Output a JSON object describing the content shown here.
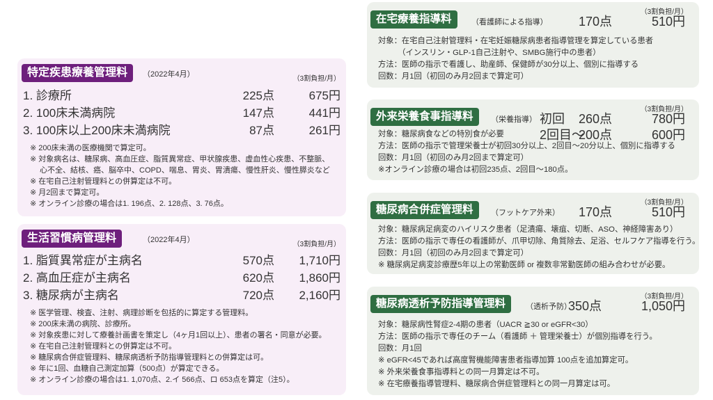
{
  "left_panels": [
    {
      "title": "特定疾患療養管理料",
      "subtitle": "（2022年4月）",
      "burden": "（3割負担/月）",
      "items": [
        {
          "label": "1. 診療所",
          "points": "225点",
          "yen": "675円"
        },
        {
          "label": "2. 100床未満病院",
          "points": "147点",
          "yen": "441円"
        },
        {
          "label": "3. 100床以上200床未満病院",
          "points": "87点",
          "yen": "261円"
        }
      ],
      "notes": [
        "※ 200床未満の医療機関で算定可。",
        "※ 対象病名は、糖尿病、高血圧症、脂質異常症、甲状腺疾患、虚血性心疾患、不整脈、",
        "　 心不全、結核、癌、脳卒中、COPD、喘息、胃炎、胃潰瘍、慢性肝炎、慢性膵炎など",
        "※ 在宅自己注射管理料との併算定は不可。",
        "※ 月2回まで算定可。",
        "※ オンライン診療の場合は1. 196点、2. 128点、3. 76点。"
      ]
    },
    {
      "title": "生活習慣病管理料",
      "subtitle": "（2022年4月）",
      "burden": "（3割負担/月）",
      "items": [
        {
          "label": "1. 脂質異常症が主病名",
          "points": "570点",
          "yen": "1,710円"
        },
        {
          "label": "2. 高血圧症が主病名",
          "points": "620点",
          "yen": "1,860円"
        },
        {
          "label": "3. 糖尿病が主病名",
          "points": "720点",
          "yen": "2,160円"
        }
      ],
      "notes": [
        "※ 医学管理、検査、注射、病理診断を包括的に算定する管理料。",
        "※ 200床未満の病院、診療所。",
        "※ 対象疾患に対して療養計画書を策定し（4ヶ月1回以上）、患者の署名・同意が必要。",
        "※ 在宅自己注射管理料との併算定は不可。",
        "※ 糖尿病合併症管理料、糖尿病透析予防指導管理料との併算定は可。",
        "※ 年に1回、血糖自己測定加算（500点）が算定できる。",
        "※ オンライン診療の場合は1. 1,070点、2.イ 566点、ロ 653点を算定（注5）。"
      ]
    }
  ],
  "right_panels": [
    {
      "title": "在宅療養指導料",
      "subtitle": "（看護師による指導）",
      "burden": "（3割負担/月）",
      "prices": [
        {
          "label": "",
          "points": "170点",
          "yen": "510円"
        }
      ],
      "notes": [
        "対象：在宅自己注射管理料・在宅妊娠糖尿病患者指導管理を算定している患者",
        "　　　（インスリン・GLP-1自己注射や、SMBG施行中の患者）",
        "方法：医師の指示で看護し、助産師、保健師が30分以上、個別に指導する",
        "回数：月1回（初回のみ月2回まで算定可）"
      ]
    },
    {
      "title": "外来栄養食事指導料",
      "subtitle": "（栄養指導）",
      "burden": "（3割負担/月）",
      "prices": [
        {
          "label": "初回",
          "points": "260点",
          "yen": "780円"
        },
        {
          "label": "2回目～",
          "points": "200点",
          "yen": "600円"
        }
      ],
      "notes": [
        "対象：糖尿病食などの特別食が必要",
        "方法：医師の指示で管理栄養士が初回30分以上、2回目～20分以上、個別に指導する",
        "回数：月1回（初回のみ月2回まで算定可）",
        "※オンライン診療の場合は初回235点、2回目～180点。"
      ]
    },
    {
      "title": "糖尿病合併症管理料",
      "subtitle": "（フットケア外来）",
      "burden": "（3割負担/月）",
      "prices": [
        {
          "label": "",
          "points": "170点",
          "yen": "510円"
        }
      ],
      "notes": [
        "対象：糖尿病足病変のハイリスク患者（足潰瘍、壊疽、切断、ASO、神経障害あり）",
        "方法：医師の指示で専任の看護師が、爪甲切除、角質除去、足浴、セルフケア指導を行う。",
        "回数：月1回（初回のみ月2回まで算定可）",
        "※ 糖尿病足病変診療歴5年以上の常勤医師 or 複数非常勤医師の組み合わせが必要。"
      ]
    },
    {
      "title": "糖尿病透析予防指導管理料",
      "subtitle": "（透析予防）",
      "burden": "（3割負担/月）",
      "prices": [
        {
          "label": "",
          "points": "350点",
          "yen": "1,050円"
        }
      ],
      "notes": [
        "対象：糖尿病性腎症2-4期の患者（UACR ≧30 or eGFR<30）",
        "方法：医師の指示で専任のチーム（看護師 ＋ 管理栄養士）が個別指導を行う。",
        "回数：月1回",
        "※ eGFR<45であれば高度腎機能障害患者指導加算 100点を追加算定可。",
        "※ 外来栄養食事指導料との同一月算定は不可。",
        "※ 在宅療養指導管理料、糖尿病合併症管理料との同一月算定は可。"
      ]
    }
  ],
  "colors": {
    "purple_badge": "#6e1f7c",
    "purple_bg": "#f8eef8",
    "green_badge": "#2f6e42",
    "green_bg": "#eef1ec"
  }
}
